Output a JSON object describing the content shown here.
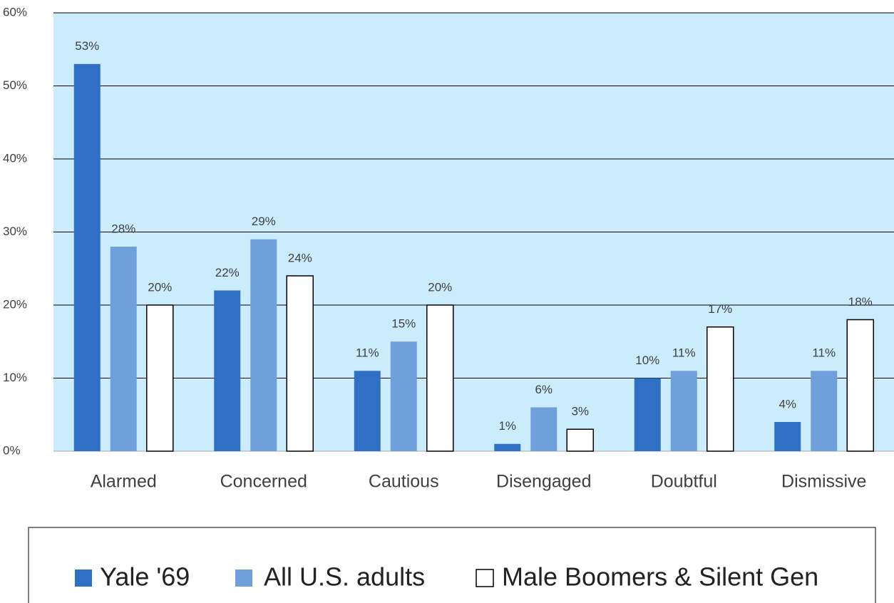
{
  "chart_data": {
    "type": "bar",
    "categories": [
      "Alarmed",
      "Concerned",
      "Cautious",
      "Disengaged",
      "Doubtful",
      "Dismissive"
    ],
    "series": [
      {
        "name": "Yale '69",
        "color": "#3070c4",
        "values": [
          53,
          22,
          11,
          1,
          10,
          4
        ],
        "value_labels": [
          "53%",
          "22%",
          "11%",
          "1%",
          "10%",
          "4%"
        ]
      },
      {
        "name": "All U.S. adults",
        "color": "#70a0dc",
        "values": [
          28,
          29,
          15,
          6,
          11,
          11
        ],
        "value_labels": [
          "28%",
          "29%",
          "15%",
          "6%",
          "11%",
          "11%"
        ]
      },
      {
        "name": "Male Boomers & Silent Gen",
        "color": "#ffffff",
        "values": [
          20,
          24,
          20,
          3,
          17,
          18
        ],
        "value_labels": [
          "20%",
          "24%",
          "20%",
          "3%",
          "17%",
          "18%"
        ]
      }
    ],
    "ylim": [
      0,
      60
    ],
    "yticks": [
      {
        "value": 0,
        "label": "0%"
      },
      {
        "value": 10,
        "label": "10%"
      },
      {
        "value": 20,
        "label": "20%"
      },
      {
        "value": 30,
        "label": "30%"
      },
      {
        "value": 40,
        "label": "40%"
      },
      {
        "value": 50,
        "label": "50%"
      },
      {
        "value": 60,
        "label": "60%"
      }
    ],
    "grid": true,
    "legend": "bottom"
  }
}
